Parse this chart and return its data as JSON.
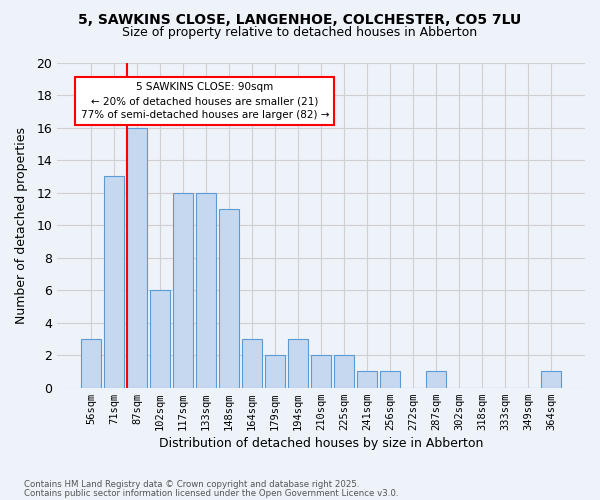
{
  "title_line1": "5, SAWKINS CLOSE, LANGENHOE, COLCHESTER, CO5 7LU",
  "title_line2": "Size of property relative to detached houses in Abberton",
  "xlabel": "Distribution of detached houses by size in Abberton",
  "ylabel": "Number of detached properties",
  "bar_labels": [
    "56sqm",
    "71sqm",
    "87sqm",
    "102sqm",
    "117sqm",
    "133sqm",
    "148sqm",
    "164sqm",
    "179sqm",
    "194sqm",
    "210sqm",
    "225sqm",
    "241sqm",
    "256sqm",
    "272sqm",
    "287sqm",
    "302sqm",
    "318sqm",
    "333sqm",
    "349sqm",
    "364sqm"
  ],
  "values": [
    3,
    13,
    16,
    6,
    12,
    12,
    11,
    3,
    2,
    3,
    2,
    2,
    1,
    1,
    0,
    1,
    0,
    0,
    0,
    0,
    1
  ],
  "bar_color": "#c5d8f0",
  "bar_edge_color": "#5b9bd5",
  "red_line_index": 2,
  "annotation_text": "5 SAWKINS CLOSE: 90sqm\n← 20% of detached houses are smaller (21)\n77% of semi-detached houses are larger (82) →",
  "annotation_box_color": "white",
  "annotation_box_edge_color": "red",
  "ylim": [
    0,
    20
  ],
  "yticks": [
    0,
    2,
    4,
    6,
    8,
    10,
    12,
    14,
    16,
    18,
    20
  ],
  "grid_color": "#d0d0d0",
  "footnote1": "Contains HM Land Registry data © Crown copyright and database right 2025.",
  "footnote2": "Contains public sector information licensed under the Open Government Licence v3.0.",
  "bg_color": "#eef2f9"
}
